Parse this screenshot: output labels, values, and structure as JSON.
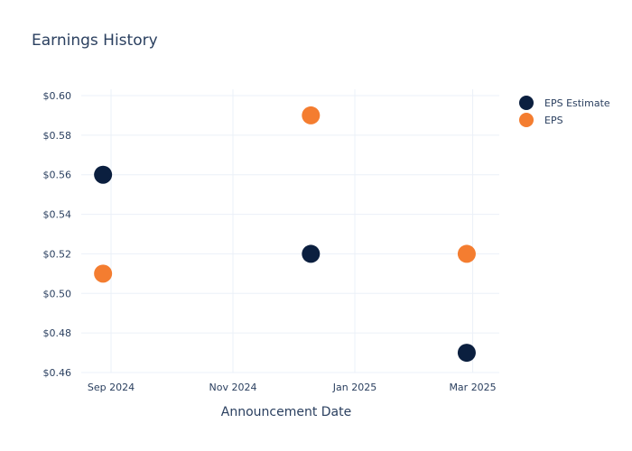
{
  "chart_data": {
    "type": "scatter",
    "title": "Earnings History",
    "xlabel": "Announcement Date",
    "ylabel": "",
    "x_tick_labels": [
      "Sep 2024",
      "Nov 2024",
      "Jan 2025",
      "Mar 2025"
    ],
    "y_tick_labels": [
      "$0.46",
      "$0.48",
      "$0.50",
      "$0.52",
      "$0.54",
      "$0.56",
      "$0.58",
      "$0.60"
    ],
    "ylim": [
      0.46,
      0.6
    ],
    "grid": true,
    "legend_position": "top-right",
    "series": [
      {
        "name": "EPS Estimate",
        "color": "#0b1f3f",
        "points": [
          {
            "x": "2024-08-28",
            "y": 0.56
          },
          {
            "x": "2024-12-10",
            "y": 0.52
          },
          {
            "x": "2025-02-26",
            "y": 0.47
          }
        ]
      },
      {
        "name": "EPS",
        "color": "#f47d30",
        "points": [
          {
            "x": "2024-08-28",
            "y": 0.51
          },
          {
            "x": "2024-12-10",
            "y": 0.59
          },
          {
            "x": "2025-02-26",
            "y": 0.52
          }
        ]
      }
    ]
  },
  "colors": {
    "text": "#2a3f5f",
    "grid": "#ebf0f8"
  }
}
